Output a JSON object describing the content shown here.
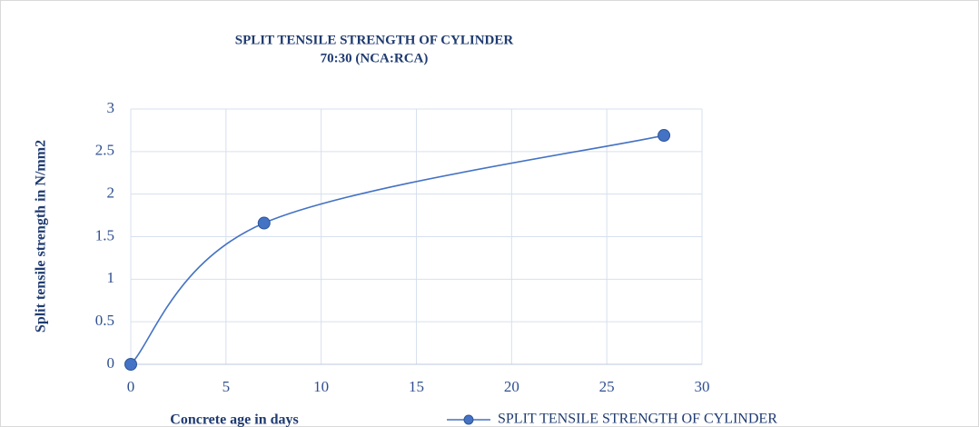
{
  "chart_data": {
    "type": "line",
    "smooth": true,
    "title": [
      "SPLIT TENSILE STRENGTH OF CYLINDER",
      "70:30 (NCA:RCA)"
    ],
    "x_label": "Concrete age in days",
    "y_label": "Split tensile strength in N/mm2",
    "x": [
      0,
      7,
      28
    ],
    "series": [
      {
        "name": "SPLIT TENSILE STRENGTH OF CYLINDER",
        "color": "#4472c4",
        "values": [
          0,
          1.66,
          2.69
        ]
      }
    ],
    "xlim": [
      0,
      30
    ],
    "xticks": [
      0,
      5,
      10,
      15,
      20,
      25,
      30
    ],
    "ylim": [
      0,
      3
    ],
    "yticks": [
      0,
      0.5,
      1,
      1.5,
      2,
      2.5,
      3
    ],
    "grid": true,
    "legend": "bottom"
  }
}
